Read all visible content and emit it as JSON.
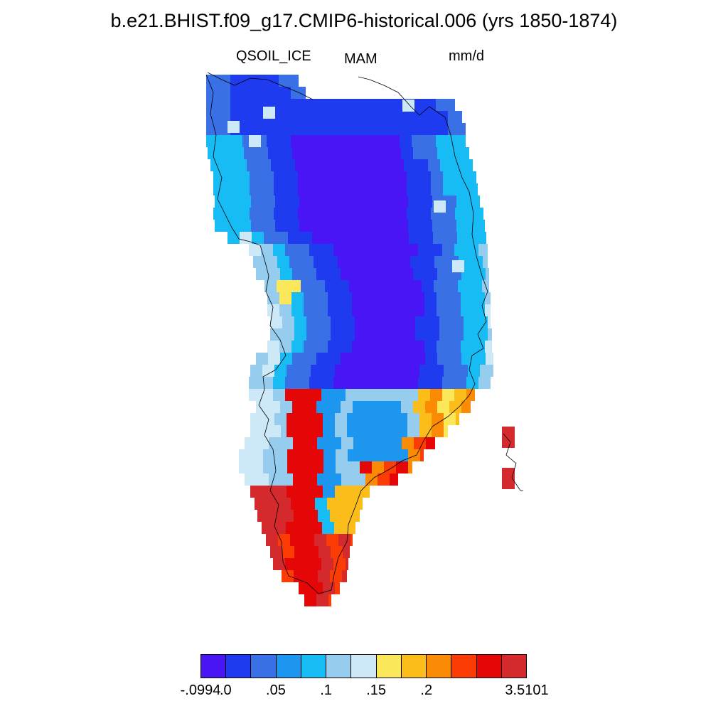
{
  "title": "b.e21.BHIST.f09_g17.CMIP6-historical.006 (yrs 1850-1874)",
  "subtitle": {
    "variable": "QSOIL_ICE",
    "season": "MAM",
    "units": "mm/d"
  },
  "legend": {
    "colors": [
      "#4a15f5",
      "#1f3bf0",
      "#3a70e6",
      "#1c96ee",
      "#18bcf5",
      "#96ccee",
      "#cde8f6",
      "#fbe85a",
      "#fbbd1a",
      "#fb8a05",
      "#fb3c05",
      "#e50707",
      "#d42a2e"
    ],
    "labels": [
      "-.0994",
      ".0",
      ".05",
      ".1",
      ".15",
      ".2",
      "3.5101"
    ]
  },
  "map": {
    "region": "Greenland",
    "coastline_color": "#000000",
    "missing_color": "#ffffff"
  }
}
